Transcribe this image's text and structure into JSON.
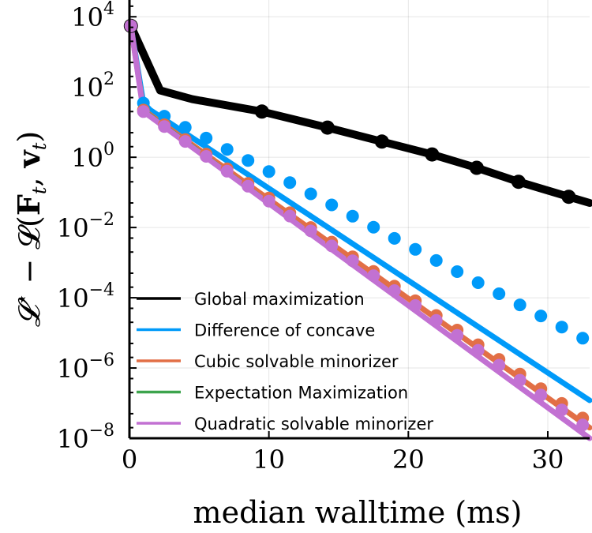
{
  "chart_data": {
    "type": "line",
    "title": "",
    "xlabel": "median walltime (ms)",
    "ylabel": "𝓛* − 𝓛(F_t, v_t)",
    "ylabel_parts": {
      "lhs": "𝓛",
      "star": "⋆",
      "minus": " − 𝓛(",
      "F": "F",
      "t1": "t",
      "comma": ", ",
      "v": "v",
      "t2": "t",
      "close": ")"
    },
    "xscale": "linear",
    "yscale": "log10",
    "xlim": [
      0,
      33
    ],
    "ylim": [
      1e-08,
      30000
    ],
    "grid": true,
    "legend_position": "bottom-left",
    "x_ticks": [
      {
        "value": 0,
        "label": "0"
      },
      {
        "value": 10,
        "label": "10"
      },
      {
        "value": 20,
        "label": "20"
      },
      {
        "value": 30,
        "label": "30"
      }
    ],
    "y_ticks": [
      {
        "value": 10000.0,
        "base": "10",
        "exp": "4"
      },
      {
        "value": 100.0,
        "base": "10",
        "exp": "2"
      },
      {
        "value": 1,
        "base": "10",
        "exp": "0"
      },
      {
        "value": 0.01,
        "base": "10",
        "exp": "−2"
      },
      {
        "value": 0.0001,
        "base": "10",
        "exp": "−4"
      },
      {
        "value": 1e-06,
        "base": "10",
        "exp": "−6"
      },
      {
        "value": 1e-08,
        "base": "10",
        "exp": "−8"
      }
    ],
    "series": [
      {
        "name": "Global maximization",
        "color": "#000000",
        "line_x": [
          0.1,
          2.2,
          4.5,
          9.5,
          14.2,
          18.1,
          21.7,
          24.9,
          27.9,
          31.5,
          33.0
        ],
        "line_y": [
          5500,
          80,
          45,
          20,
          7,
          2.8,
          1.2,
          0.5,
          0.2,
          0.075,
          0.05
        ],
        "markers_x": [
          0.1,
          9.5,
          14.2,
          18.1,
          21.7,
          24.9,
          27.9,
          31.5
        ],
        "markers_y": [
          5500,
          20,
          7,
          2.8,
          1.2,
          0.5,
          0.2,
          0.075
        ]
      },
      {
        "name": "Difference of concave",
        "color": "#009af9",
        "line_x": [
          0.1,
          1.0,
          1.5,
          33.0
        ],
        "line_y": [
          5500,
          35,
          22,
          1.2e-07
        ],
        "markers_x": [
          0.1,
          1.0,
          2.5,
          4.0,
          5.5,
          7.0,
          8.5,
          10.0,
          11.5,
          13.0,
          14.5,
          16.0,
          17.5,
          19.0,
          20.5,
          22.0,
          23.5,
          25.0,
          26.5,
          28.0,
          29.5,
          31.0,
          32.5
        ],
        "markers_y": [
          5500,
          35,
          14.8,
          7.1,
          3.5,
          1.67,
          0.81,
          0.39,
          0.19,
          0.091,
          0.044,
          0.021,
          0.0102,
          0.0049,
          0.00238,
          0.00115,
          0.000555,
          0.000268,
          0.00013,
          6.26e-05,
          3.03e-05,
          1.46e-05,
          7.06e-06
        ]
      },
      {
        "name": "Cubic solvable minorizer",
        "color": "#e26f46",
        "line_x": [
          0.1,
          1.0,
          33.0
        ],
        "line_y": [
          5500,
          22,
          2e-08
        ],
        "markers_x": [
          0.1,
          1.0,
          2.5,
          4.0,
          5.5,
          7.0,
          8.5,
          10.0,
          11.5,
          13.0,
          14.5,
          16.0,
          17.5,
          19.0,
          20.5,
          22.0,
          23.5,
          25.0,
          26.5,
          28.0,
          29.5,
          31.0,
          32.5
        ],
        "markers_y": [
          5500,
          22,
          8.4,
          3.2,
          1.23,
          0.47,
          0.18,
          0.069,
          0.0263,
          0.01,
          0.00385,
          0.00147,
          0.00056,
          0.000214,
          8.2e-05,
          3.14e-05,
          1.2e-05,
          4.6e-06,
          1.76e-06,
          6.72e-07,
          2.57e-07,
          9.8e-08,
          3.76e-08
        ]
      },
      {
        "name": "Expectation Maximization",
        "color": "#3da44d",
        "line_x": [
          0.1,
          1.0,
          33.0
        ],
        "line_y": [
          5500,
          22,
          1e-08
        ],
        "markers_x": [],
        "markers_y": []
      },
      {
        "name": "Quadratic solvable minorizer",
        "color": "#c271d2",
        "line_x": [
          0.1,
          1.0,
          33.0
        ],
        "line_y": [
          5500,
          20,
          1e-08
        ],
        "markers_x": [
          0.1,
          1.0,
          2.5,
          4.0,
          5.5,
          7.0,
          8.5,
          10.0,
          11.5,
          13.0,
          14.5,
          16.0,
          17.5,
          19.0,
          20.5,
          22.0,
          23.5,
          25.0,
          26.5,
          28.0,
          29.5,
          31.0,
          32.5
        ],
        "markers_y": [
          5500,
          20,
          7.5,
          2.82,
          1.06,
          0.4,
          0.15,
          0.0564,
          0.0212,
          0.008,
          0.003,
          0.00113,
          0.000425,
          0.00016,
          6e-05,
          2.26e-05,
          8.5e-06,
          3.2e-06,
          1.2e-06,
          4.5e-07,
          1.7e-07,
          6.4e-08,
          2.4e-08
        ]
      }
    ]
  }
}
